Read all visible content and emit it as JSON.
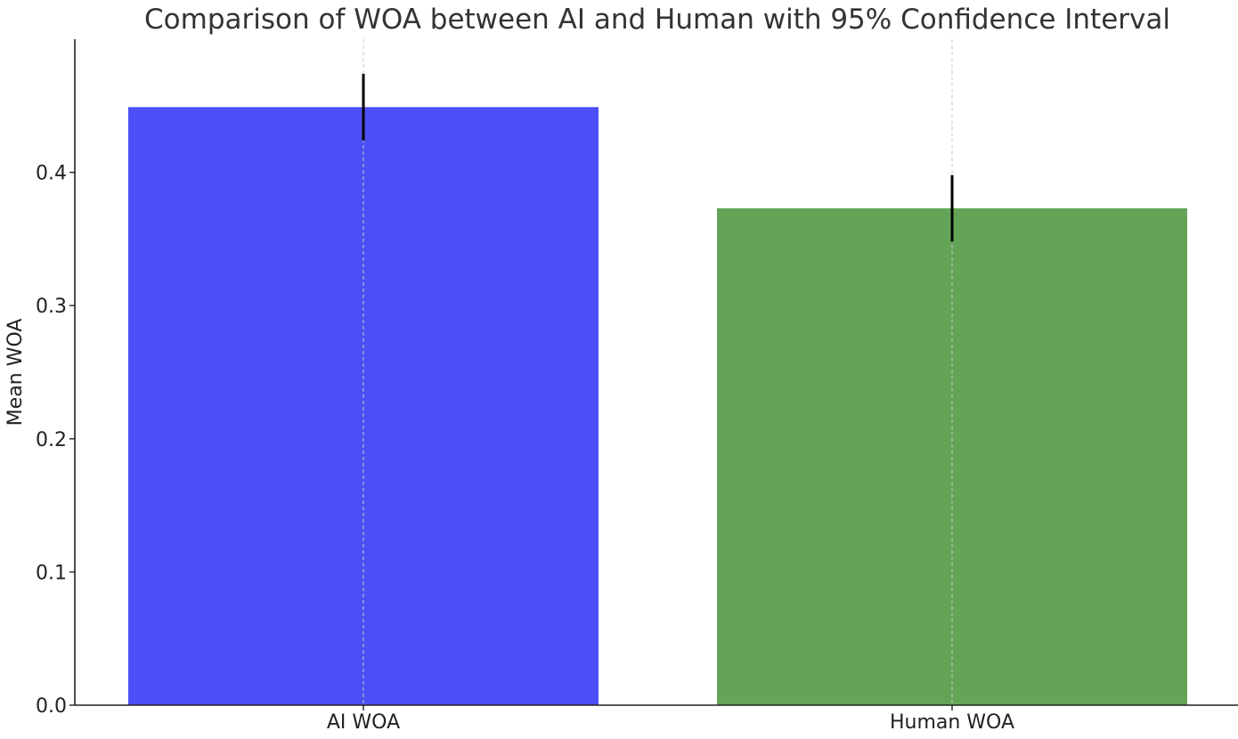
{
  "chart_data": {
    "type": "bar",
    "title": "Comparison of WOA between AI and Human with 95% Confidence Interval",
    "xlabel": "",
    "ylabel": "Mean WOA",
    "categories": [
      "AI WOA",
      "Human WOA"
    ],
    "values": [
      0.449,
      0.373
    ],
    "error_low": [
      0.424,
      0.348
    ],
    "error_high": [
      0.474,
      0.398
    ],
    "ylim": [
      0,
      0.5
    ],
    "yticks": [
      0.0,
      0.1,
      0.2,
      0.3,
      0.4
    ],
    "ytick_labels": [
      "0.0",
      "0.1",
      "0.2",
      "0.3",
      "0.4"
    ],
    "bar_colors": [
      "#4c4ff5",
      "#64a457"
    ],
    "error_bar_color": "#000000",
    "grid": "vertical dashed at categories",
    "legend": "none"
  }
}
